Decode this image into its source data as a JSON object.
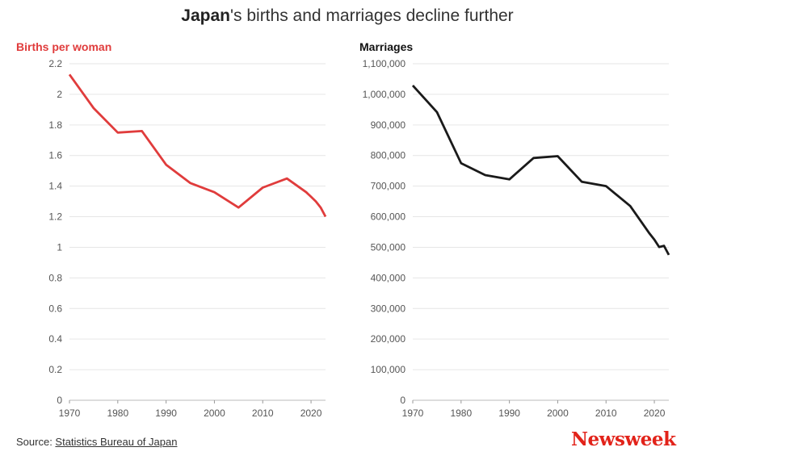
{
  "header": {
    "title_bold": "Japan",
    "title_rest": "'s births and marriages decline further"
  },
  "footer": {
    "source_prefix": "Source: ",
    "source_link": "Statistics Bureau of Japan",
    "logo": "Newsweek"
  },
  "colors": {
    "births": "#e03c3c",
    "marriages": "#1a1a1a",
    "logo": "#e2231a"
  },
  "chart_data": [
    {
      "type": "line",
      "title": "Births per woman",
      "xlim": [
        1970,
        2023
      ],
      "ylim": [
        0,
        2.2
      ],
      "xticks": [
        1970,
        1980,
        1990,
        2000,
        2010,
        2020
      ],
      "yticks": [
        0,
        0.2,
        0.4,
        0.6,
        0.8,
        1,
        1.2,
        1.4,
        1.6,
        1.8,
        2,
        2.2
      ],
      "ytick_labels": [
        "0",
        "0.2",
        "0.4",
        "0.6",
        "0.8",
        "1",
        "1.2",
        "1.4",
        "1.6",
        "1.8",
        "2",
        "2.2"
      ],
      "series": [
        {
          "x": [
            1970,
            1975,
            1980,
            1985,
            1990,
            1995,
            2000,
            2005,
            2010,
            2015,
            2019,
            2020,
            2021,
            2022,
            2023
          ],
          "y": [
            2.13,
            1.91,
            1.75,
            1.76,
            1.54,
            1.42,
            1.36,
            1.26,
            1.39,
            1.45,
            1.36,
            1.33,
            1.3,
            1.26,
            1.2
          ]
        }
      ]
    },
    {
      "type": "line",
      "title": "Marriages",
      "xlim": [
        1970,
        2023
      ],
      "ylim": [
        0,
        1100000
      ],
      "xticks": [
        1970,
        1980,
        1990,
        2000,
        2010,
        2020
      ],
      "yticks": [
        0,
        100000,
        200000,
        300000,
        400000,
        500000,
        600000,
        700000,
        800000,
        900000,
        1000000,
        1100000
      ],
      "ytick_labels": [
        "0",
        "100,000",
        "200,000",
        "300,000",
        "400,000",
        "500,000",
        "600,000",
        "700,000",
        "800,000",
        "900,000",
        "1,000,000",
        "1,100,000"
      ],
      "series": [
        {
          "x": [
            1970,
            1975,
            1980,
            1985,
            1990,
            1995,
            2000,
            2005,
            2010,
            2015,
            2019,
            2020,
            2021,
            2022,
            2023
          ],
          "y": [
            1029000,
            942000,
            775000,
            736000,
            722000,
            792000,
            798000,
            714000,
            700000,
            635000,
            545000,
            525000,
            501000,
            505000,
            475000
          ]
        }
      ]
    }
  ]
}
